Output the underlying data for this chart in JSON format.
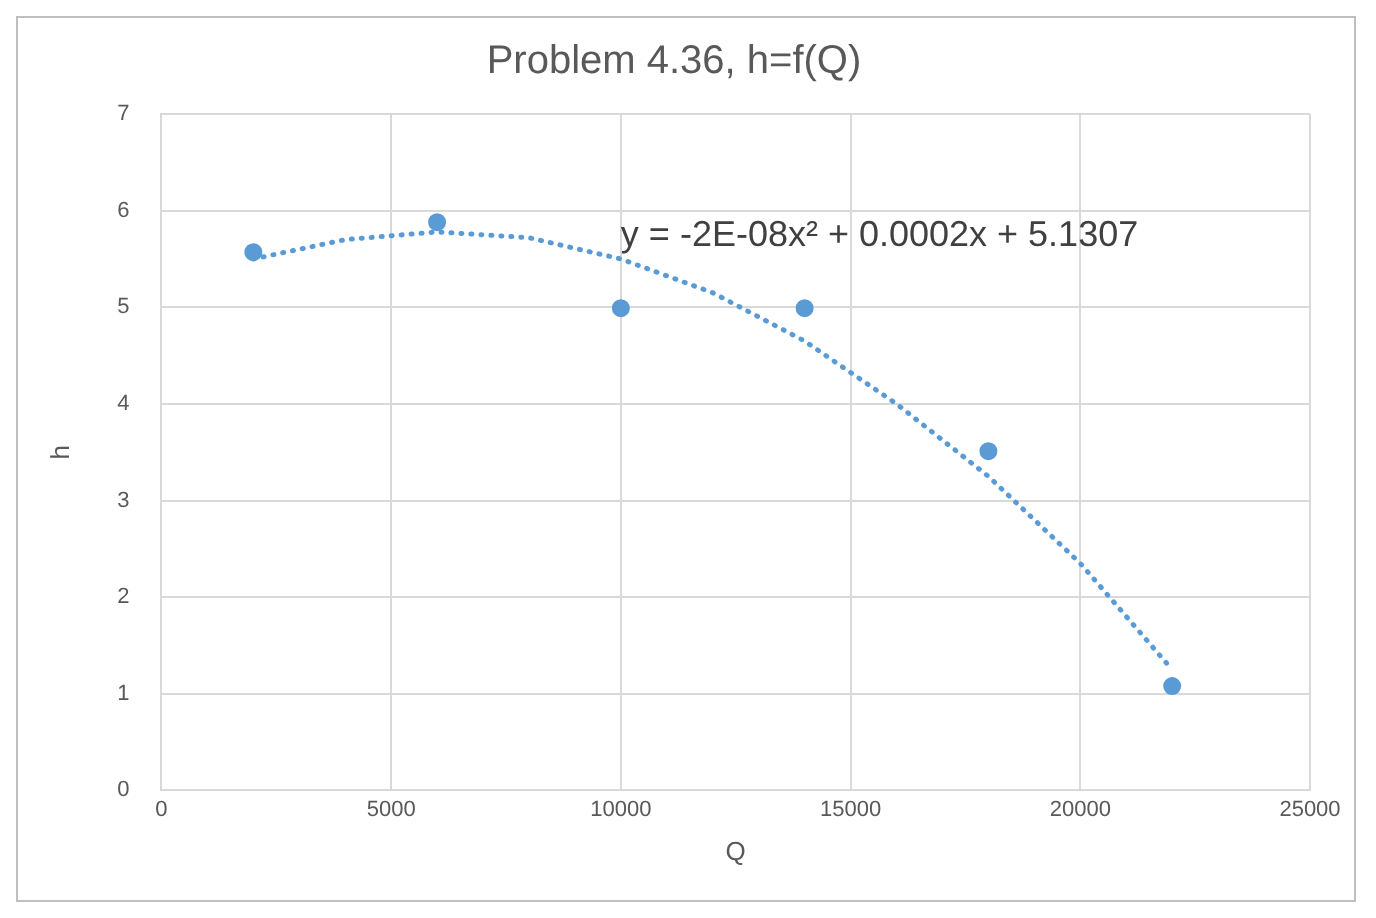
{
  "chart_data": {
    "type": "scatter",
    "title": "Problem 4.36, h=f(Q)",
    "xlabel": "Q",
    "ylabel": "h",
    "xlim": [
      0,
      25000
    ],
    "xticks": [
      0,
      5000,
      10000,
      15000,
      20000,
      25000
    ],
    "ylim": [
      0,
      7
    ],
    "yticks": [
      0,
      1,
      2,
      3,
      4,
      5,
      6,
      7
    ],
    "grid": true,
    "legend": false,
    "marker": "circle",
    "annotations": [
      "y = -2E-08x² + 0.0002x + 5.1307"
    ],
    "series": [
      {
        "type": "scatter",
        "color": "#5b9bd5",
        "x": [
          2000,
          6000,
          10000,
          14000,
          18000,
          22000
        ],
        "values": [
          5.57,
          5.88,
          4.99,
          4.99,
          3.51,
          1.08
        ]
      },
      {
        "type": "line",
        "color": "#5b9bd5",
        "line_style": "dotted",
        "marker": "none",
        "x": [
          2000,
          4000,
          6000,
          8000,
          10000,
          12000,
          14000,
          16000,
          18000,
          20000,
          22000
        ],
        "values": [
          5.5,
          5.7,
          5.78,
          5.72,
          5.5,
          5.15,
          4.65,
          4.0,
          3.25,
          2.35,
          1.25
        ]
      }
    ]
  }
}
